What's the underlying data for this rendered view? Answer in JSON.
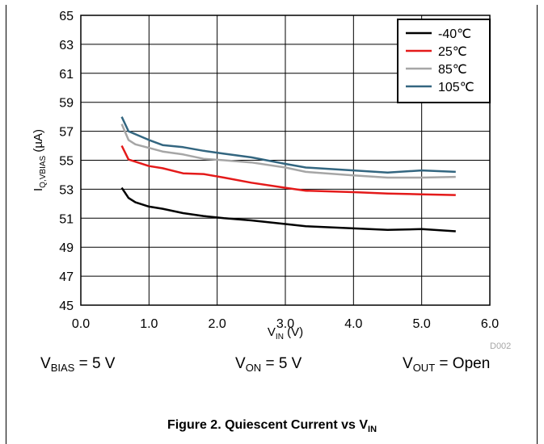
{
  "chart_data": {
    "type": "line",
    "title": "",
    "xlabel": {
      "main": "V",
      "sub": "IN",
      "tail": " (V)"
    },
    "ylabel": {
      "main": "I",
      "sub": "Q,VBIAS",
      "tail": " (µA)"
    },
    "xlim": [
      0,
      6
    ],
    "ylim": [
      45,
      65
    ],
    "xticks": [
      "0.0",
      "1.0",
      "2.0",
      "3.0",
      "4.0",
      "5.0",
      "6.0"
    ],
    "yticks": [
      "45",
      "47",
      "49",
      "51",
      "53",
      "55",
      "57",
      "59",
      "61",
      "63",
      "65"
    ],
    "grid": true,
    "legend_position": "top-right",
    "series": [
      {
        "name": "-40℃",
        "color": "#000000",
        "x": [
          0.6,
          0.7,
          0.8,
          1.0,
          1.2,
          1.5,
          1.8,
          2.1,
          2.5,
          3.0,
          3.3,
          4.0,
          4.5,
          5.0,
          5.5
        ],
        "y": [
          53.1,
          52.4,
          52.1,
          51.8,
          51.65,
          51.35,
          51.15,
          51.0,
          50.85,
          50.6,
          50.45,
          50.3,
          50.2,
          50.25,
          50.1
        ]
      },
      {
        "name": "25℃",
        "color": "#e41a1a",
        "x": [
          0.6,
          0.7,
          1.0,
          1.2,
          1.5,
          1.8,
          2.1,
          2.5,
          3.0,
          3.3,
          4.0,
          4.5,
          5.0,
          5.5
        ],
        "y": [
          56.0,
          55.05,
          54.6,
          54.45,
          54.1,
          54.05,
          53.8,
          53.45,
          53.1,
          52.9,
          52.8,
          52.7,
          52.65,
          52.6
        ]
      },
      {
        "name": "85℃",
        "color": "#a6a6a6",
        "x": [
          0.6,
          0.7,
          0.8,
          1.0,
          1.2,
          1.5,
          1.8,
          2.1,
          2.5,
          3.0,
          3.3,
          4.0,
          4.5,
          5.0,
          5.5
        ],
        "y": [
          57.5,
          56.4,
          56.1,
          55.85,
          55.6,
          55.4,
          55.1,
          55.0,
          54.85,
          54.5,
          54.2,
          53.95,
          53.8,
          53.8,
          53.85
        ]
      },
      {
        "name": "105℃",
        "color": "#336680",
        "x": [
          0.6,
          0.7,
          1.0,
          1.2,
          1.5,
          1.8,
          2.1,
          2.5,
          3.0,
          3.3,
          4.0,
          4.5,
          5.0,
          5.5
        ],
        "y": [
          58.0,
          57.0,
          56.4,
          56.05,
          55.9,
          55.65,
          55.45,
          55.2,
          54.75,
          54.5,
          54.3,
          54.15,
          54.3,
          54.2
        ]
      }
    ]
  },
  "plot_id": "D002",
  "conditions": [
    {
      "main": "V",
      "sub": "BIAS",
      "tail": " = 5 V"
    },
    {
      "main": "V",
      "sub": "ON",
      "tail": " = 5 V"
    },
    {
      "main": "V",
      "sub": "OUT",
      "tail": " = Open"
    }
  ],
  "caption": {
    "main": "Figure 2. Quiescent Current vs V",
    "sub": "IN"
  }
}
